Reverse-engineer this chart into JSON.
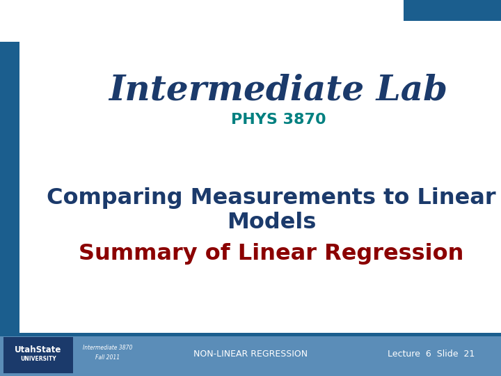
{
  "title_main": "Intermediate Lab",
  "title_sub": "PHYS 3870",
  "body_line1": "Comparing Measurements to Linear",
  "body_line2": "Models",
  "body_line3": "Summary of Linear Regression",
  "footer_left_line1": "Intermediate 3870",
  "footer_left_line2": "Fall 2011",
  "footer_center": "NON-LINEAR REGRESSION",
  "footer_right": "Lecture  6  Slide  21",
  "bg_color": "#FFFFFF",
  "top_bar_color": "#1B5E8E",
  "footer_bar_color": "#5B8DB8",
  "left_accent_color": "#1B5E8E",
  "title_color": "#1B3A6B",
  "subtitle_color": "#008080",
  "body_heading_color": "#1B3A6B",
  "body_sub_color": "#8B0000",
  "footer_text_color": "#FFFFFF",
  "logo_box_color": "#1B3A6B"
}
